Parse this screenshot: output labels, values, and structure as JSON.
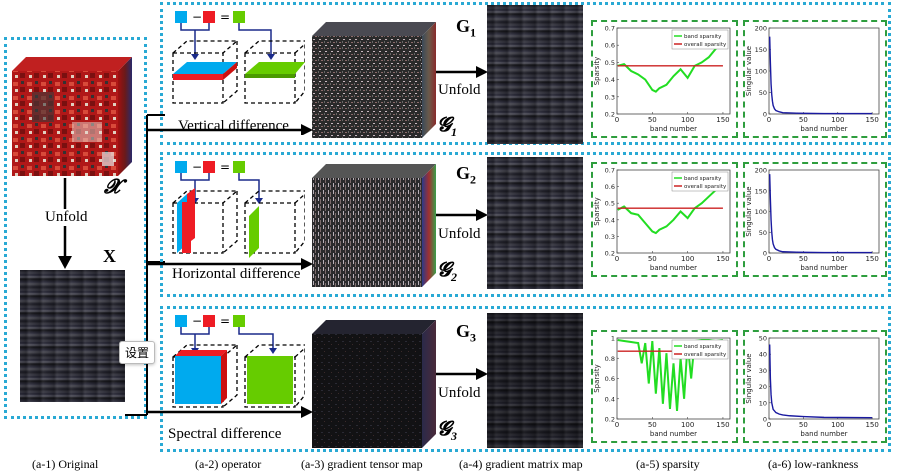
{
  "captions": {
    "a1": "(a-1) Original",
    "a2": "(a-2)  operator",
    "a3": "(a-3) gradient tensor map",
    "a4": "(a-4) gradient matrix map",
    "a5": "(a-5) sparsity",
    "a6": "(a-6) low-rankness"
  },
  "original": {
    "tensor_symbol": "𝓧",
    "matrix_symbol": "X",
    "unfold_label": "Unfold"
  },
  "rows": [
    {
      "operator_label": "Vertical difference",
      "matrix_symbol": "G",
      "matrix_sub": "1",
      "tensor_symbol": "𝓖",
      "tensor_sub": "1",
      "unfold_label": "Unfold"
    },
    {
      "operator_label": "Horizontal difference",
      "matrix_symbol": "G",
      "matrix_sub": "2",
      "tensor_symbol": "𝓖",
      "tensor_sub": "2",
      "unfold_label": "Unfold"
    },
    {
      "operator_label": "Spectral difference",
      "matrix_symbol": "G",
      "matrix_sub": "3",
      "tensor_symbol": "𝓖",
      "tensor_sub": "3",
      "unfold_label": "Unfold"
    }
  ],
  "operator_glyphs": {
    "minus": "−",
    "equals": "="
  },
  "tooltip": {
    "text": "设置"
  },
  "colors": {
    "accent_blue": "#00aaee",
    "accent_red": "#ee1c24",
    "accent_green": "#66cc00",
    "outer_dotted": "#29a9d4",
    "panel_dashed": "#2e9e3e",
    "sparsity_line": "#22dd22",
    "overall_line": "#cc2222",
    "singular_line": "#1a1aa0"
  },
  "chart_data": [
    {
      "type": "line",
      "panel": "row1-sparsity",
      "xlabel": "band number",
      "ylabel": "Sparsity",
      "xlim": [
        0,
        160
      ],
      "ylim": [
        0.2,
        0.7
      ],
      "xticks": [
        0,
        50,
        100,
        150
      ],
      "yticks": [
        0.2,
        0.3,
        0.4,
        0.5,
        0.6,
        0.7
      ],
      "series": [
        {
          "name": "band sparsity",
          "x": [
            1,
            10,
            20,
            30,
            40,
            50,
            55,
            60,
            70,
            80,
            90,
            100,
            110,
            120,
            130,
            140,
            150
          ],
          "y": [
            0.48,
            0.49,
            0.45,
            0.43,
            0.4,
            0.34,
            0.33,
            0.35,
            0.37,
            0.42,
            0.46,
            0.41,
            0.48,
            0.5,
            0.53,
            0.58,
            0.66
          ]
        },
        {
          "name": "overall sparsity",
          "x": [
            1,
            150
          ],
          "y": [
            0.48,
            0.48
          ]
        }
      ]
    },
    {
      "type": "line",
      "panel": "row1-lowrank",
      "xlabel": "band number",
      "ylabel": "Singular value",
      "xlim": [
        0,
        160
      ],
      "ylim": [
        0,
        200
      ],
      "xticks": [
        0,
        50,
        100,
        150
      ],
      "yticks": [
        0,
        50,
        100,
        150,
        200
      ],
      "series": [
        {
          "x": [
            1,
            2,
            3,
            4,
            5,
            6,
            8,
            10,
            15,
            20,
            40,
            80,
            150
          ],
          "y": [
            180,
            120,
            70,
            45,
            30,
            20,
            12,
            8,
            5,
            3,
            2,
            1,
            1
          ]
        }
      ]
    },
    {
      "type": "line",
      "panel": "row2-sparsity",
      "xlabel": "band number",
      "ylabel": "Sparsity",
      "xlim": [
        0,
        160
      ],
      "ylim": [
        0.2,
        0.7
      ],
      "xticks": [
        0,
        50,
        100,
        150
      ],
      "yticks": [
        0.2,
        0.3,
        0.4,
        0.5,
        0.6,
        0.7
      ],
      "series": [
        {
          "name": "band sparsity",
          "x": [
            1,
            10,
            20,
            30,
            40,
            50,
            55,
            60,
            70,
            80,
            90,
            100,
            110,
            120,
            130,
            140,
            150
          ],
          "y": [
            0.46,
            0.48,
            0.44,
            0.43,
            0.38,
            0.33,
            0.32,
            0.34,
            0.36,
            0.4,
            0.45,
            0.41,
            0.47,
            0.5,
            0.54,
            0.58,
            0.68
          ]
        },
        {
          "name": "overall sparsity",
          "x": [
            1,
            150
          ],
          "y": [
            0.47,
            0.47
          ]
        }
      ]
    },
    {
      "type": "line",
      "panel": "row2-lowrank",
      "xlabel": "band number",
      "ylabel": "Singular value",
      "xlim": [
        0,
        160
      ],
      "ylim": [
        0,
        200
      ],
      "xticks": [
        0,
        50,
        100,
        150
      ],
      "yticks": [
        0,
        50,
        100,
        150,
        200
      ],
      "series": [
        {
          "x": [
            1,
            2,
            3,
            4,
            5,
            6,
            8,
            10,
            15,
            20,
            40,
            80,
            150
          ],
          "y": [
            190,
            130,
            80,
            50,
            32,
            22,
            13,
            9,
            5,
            3,
            2,
            1,
            1
          ]
        }
      ]
    },
    {
      "type": "line",
      "panel": "row3-sparsity",
      "xlabel": "band number",
      "ylabel": "Sparsity",
      "xlim": [
        0,
        160
      ],
      "ylim": [
        0.2,
        1.0
      ],
      "xticks": [
        0,
        50,
        100,
        150
      ],
      "yticks": [
        0.2,
        0.4,
        0.6,
        0.8,
        1.0
      ],
      "series": [
        {
          "name": "band sparsity",
          "x": [
            1,
            10,
            20,
            30,
            35,
            40,
            45,
            50,
            55,
            60,
            65,
            70,
            75,
            80,
            85,
            90,
            95,
            100,
            105,
            110,
            120,
            130,
            140,
            150
          ],
          "y": [
            0.98,
            0.97,
            0.96,
            0.95,
            0.75,
            0.95,
            0.55,
            0.97,
            0.45,
            0.9,
            0.35,
            0.85,
            0.3,
            0.75,
            0.28,
            0.8,
            0.4,
            0.95,
            0.6,
            0.97,
            0.98,
            0.98,
            0.97,
            0.98
          ]
        },
        {
          "name": "overall sparsity",
          "x": [
            1,
            150
          ],
          "y": [
            0.87,
            0.87
          ]
        }
      ]
    },
    {
      "type": "line",
      "panel": "row3-lowrank",
      "xlabel": "band number",
      "ylabel": "Singular value",
      "xlim": [
        0,
        160
      ],
      "ylim": [
        0,
        50
      ],
      "xticks": [
        0,
        50,
        100,
        150
      ],
      "yticks": [
        0,
        10,
        20,
        30,
        40,
        50
      ],
      "series": [
        {
          "x": [
            1,
            2,
            3,
            4,
            5,
            6,
            8,
            10,
            15,
            20,
            30,
            50,
            80,
            150
          ],
          "y": [
            46,
            25,
            15,
            10,
            8,
            6,
            5,
            4,
            3,
            2.5,
            2,
            1.5,
            1,
            0.8
          ]
        }
      ]
    }
  ]
}
